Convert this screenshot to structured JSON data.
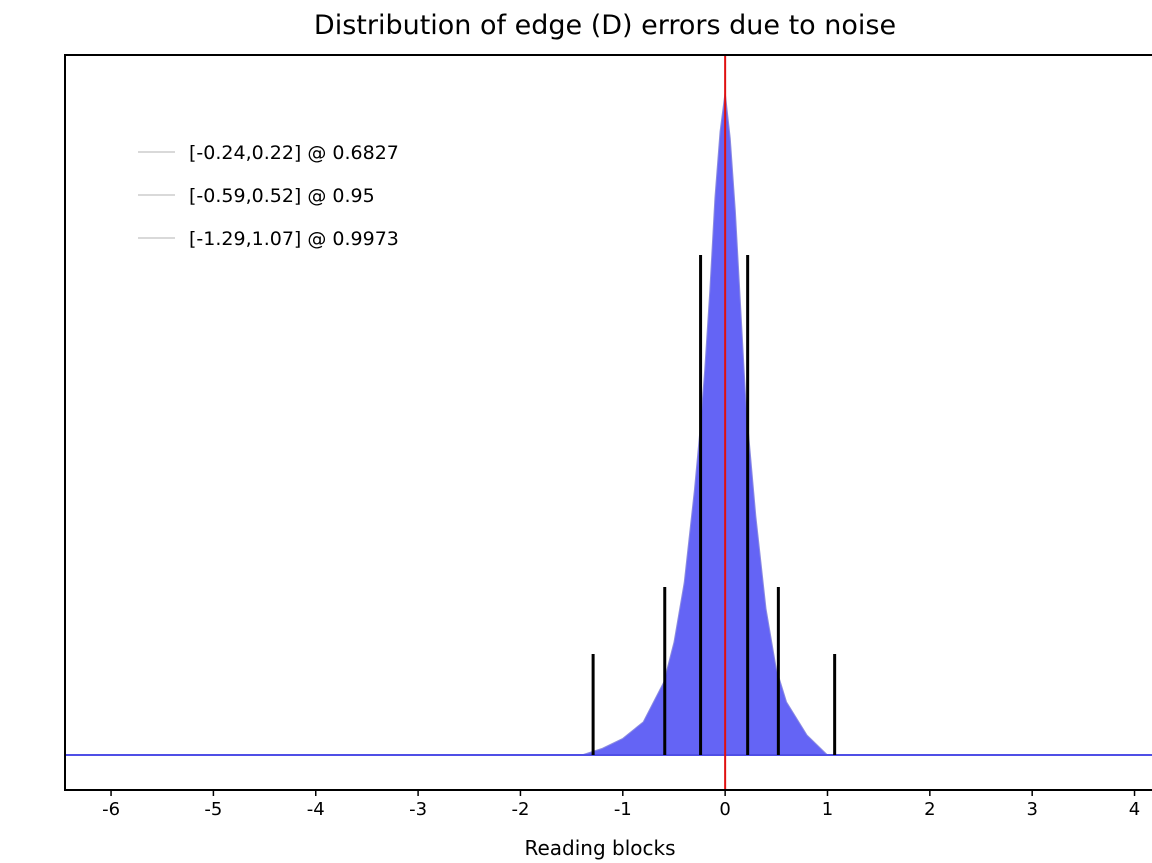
{
  "chart_data": {
    "type": "area",
    "title": "Distribution of edge (D) errors due to noise",
    "xlabel": "Reading blocks",
    "ylabel": "",
    "xlim": [
      -6.45,
      4.2
    ],
    "x_ticks": [
      -6,
      -5,
      -4,
      -3,
      -2,
      -1,
      0,
      1,
      2,
      3,
      4
    ],
    "x_tick_labels": [
      "-6",
      "-5",
      "-4",
      "-3",
      "-2",
      "-1",
      "0",
      "1",
      "2",
      "3",
      "4"
    ],
    "grid": false,
    "legend_position": "top-left",
    "histogram": {
      "description_x": [
        -1.4,
        -1.2,
        -1.0,
        -0.8,
        -0.6,
        -0.5,
        -0.4,
        -0.3,
        -0.24,
        -0.2,
        -0.15,
        -0.1,
        -0.05,
        0.0,
        0.05,
        0.1,
        0.15,
        0.2,
        0.22,
        0.3,
        0.4,
        0.5,
        0.6,
        0.8,
        1.0
      ],
      "density": [
        0.0,
        0.01,
        0.025,
        0.05,
        0.11,
        0.17,
        0.26,
        0.4,
        0.5,
        0.58,
        0.7,
        0.84,
        0.94,
        1.0,
        0.93,
        0.82,
        0.68,
        0.54,
        0.5,
        0.36,
        0.22,
        0.13,
        0.08,
        0.03,
        0.0
      ]
    },
    "center_line_x": 0,
    "intervals": [
      {
        "label": "[-0.24,0.22] @ 0.6827",
        "low": -0.24,
        "high": 0.22,
        "coverage": 0.6827
      },
      {
        "label": "[-0.59,0.52] @ 0.95",
        "low": -0.59,
        "high": 0.52,
        "coverage": 0.95
      },
      {
        "label": "[-1.29,1.07] @ 0.9973",
        "low": -1.29,
        "high": 1.07,
        "coverage": 0.9973
      }
    ],
    "colors": {
      "fill": "#6464f5",
      "baseline": "#4f4fe6",
      "center_line": "#e01010",
      "interval_lines": "#000000",
      "legend_swatch": "#d9d9d9"
    }
  }
}
